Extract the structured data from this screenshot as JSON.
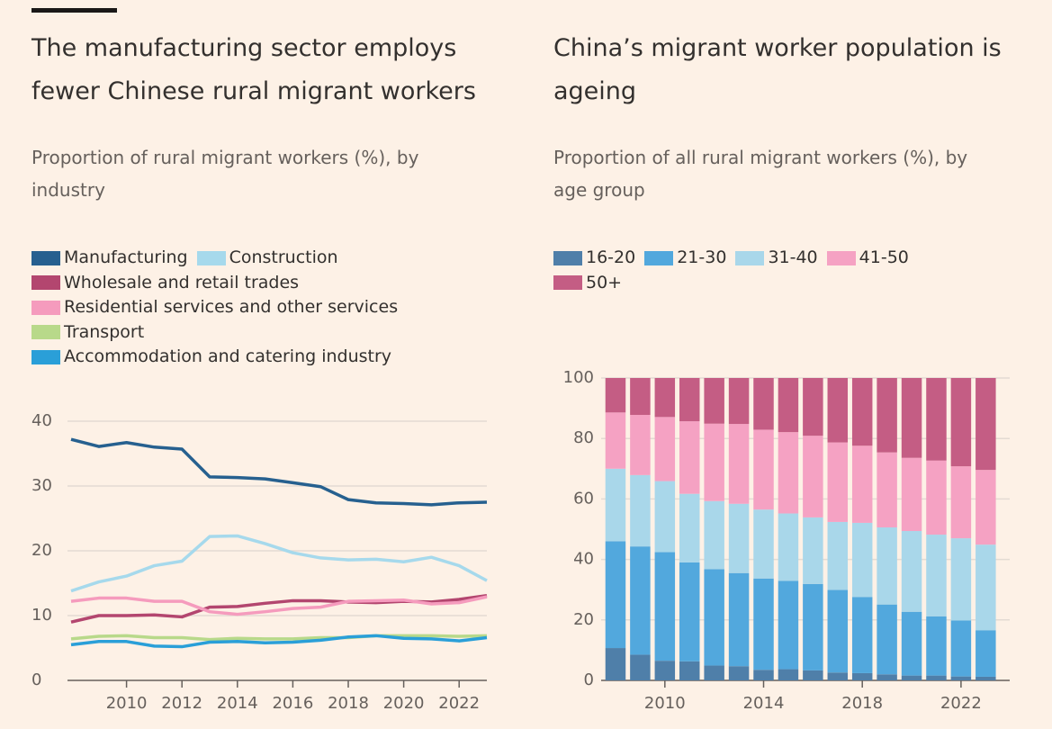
{
  "chart_data": [
    {
      "type": "line",
      "title": "The manufacturing sector employs fewer Chinese rural migrant workers",
      "subtitle": "Proportion of rural migrant workers (%), by industry",
      "x": [
        2008,
        2009,
        2010,
        2011,
        2012,
        2013,
        2014,
        2015,
        2016,
        2017,
        2018,
        2019,
        2020,
        2021,
        2022,
        2023
      ],
      "xlim": [
        2008,
        2023
      ],
      "xticks": [
        2010,
        2012,
        2014,
        2016,
        2018,
        2020,
        2022
      ],
      "ylim": [
        0,
        40
      ],
      "yticks": [
        0,
        10,
        20,
        30,
        40
      ],
      "grid": true,
      "series": [
        {
          "name": "Manufacturing",
          "color": "#26608f",
          "values": [
            37.2,
            36.1,
            36.7,
            36.0,
            35.7,
            31.4,
            31.3,
            31.1,
            30.5,
            29.9,
            27.9,
            27.4,
            27.3,
            27.1,
            27.4,
            27.5
          ]
        },
        {
          "name": "Construction",
          "color": "#a6d9ec",
          "values": [
            13.8,
            15.2,
            16.1,
            17.7,
            18.4,
            22.2,
            22.3,
            21.1,
            19.7,
            18.9,
            18.6,
            18.7,
            18.3,
            19.0,
            17.7,
            15.4
          ]
        },
        {
          "name": "Wholesale and retail trades",
          "color": "#b3466f",
          "values": [
            9.0,
            10.0,
            10.0,
            10.1,
            9.8,
            11.3,
            11.4,
            11.9,
            12.3,
            12.3,
            12.1,
            12.0,
            12.2,
            12.1,
            12.5,
            13.1
          ]
        },
        {
          "name": "Residential services and other services",
          "color": "#f59bbd",
          "values": [
            12.2,
            12.7,
            12.7,
            12.2,
            12.2,
            10.6,
            10.2,
            10.6,
            11.1,
            11.3,
            12.2,
            12.3,
            12.4,
            11.8,
            12.0,
            12.9
          ]
        },
        {
          "name": "Transport",
          "color": "#b8d98a",
          "values": [
            6.4,
            6.8,
            6.9,
            6.6,
            6.6,
            6.3,
            6.5,
            6.4,
            6.4,
            6.6,
            6.6,
            6.9,
            6.9,
            6.9,
            6.8,
            6.9
          ]
        },
        {
          "name": "Accommodation and catering industry",
          "color": "#2a9fd8",
          "values": [
            5.5,
            6.0,
            6.0,
            5.3,
            5.2,
            5.9,
            6.0,
            5.8,
            5.9,
            6.2,
            6.7,
            6.9,
            6.5,
            6.4,
            6.1,
            6.6
          ]
        }
      ]
    },
    {
      "type": "bar",
      "stacked": true,
      "title": "China’s migrant worker population is ageing",
      "subtitle": "Proportion of all rural migrant workers (%), by age group",
      "x": [
        2008,
        2009,
        2010,
        2011,
        2012,
        2013,
        2014,
        2015,
        2016,
        2017,
        2018,
        2019,
        2020,
        2021,
        2022,
        2023
      ],
      "xlim": [
        2007.6,
        2023.9
      ],
      "xticks": [
        2010,
        2014,
        2018,
        2022
      ],
      "ylim": [
        0,
        100
      ],
      "yticks": [
        0,
        20,
        40,
        60,
        80,
        100
      ],
      "grid": true,
      "series": [
        {
          "name": "16-20",
          "color": "#4f7fa9",
          "values": [
            10.7,
            8.5,
            6.5,
            6.3,
            4.9,
            4.7,
            3.5,
            3.7,
            3.3,
            2.6,
            2.4,
            2.0,
            1.6,
            1.6,
            1.3,
            1.2
          ]
        },
        {
          "name": "21-30",
          "color": "#52a8dd",
          "values": [
            35.3,
            35.8,
            35.9,
            32.7,
            31.9,
            30.8,
            30.2,
            29.2,
            28.6,
            27.3,
            25.2,
            23.1,
            21.1,
            19.6,
            18.5,
            15.4
          ]
        },
        {
          "name": "31-40",
          "color": "#a9d7ea",
          "values": [
            24.0,
            23.6,
            23.5,
            22.7,
            22.5,
            22.9,
            22.8,
            22.3,
            22.0,
            22.5,
            24.5,
            25.5,
            26.7,
            27.0,
            27.2,
            28.3
          ]
        },
        {
          "name": "41-50",
          "color": "#f5a2c3",
          "values": [
            18.6,
            19.9,
            21.2,
            24.0,
            25.6,
            26.4,
            26.4,
            26.9,
            27.0,
            26.3,
            25.5,
            24.8,
            24.2,
            24.5,
            23.8,
            24.7
          ]
        },
        {
          "name": "50+",
          "color": "#c45d84",
          "values": [
            11.4,
            12.2,
            12.9,
            14.3,
            15.1,
            15.2,
            17.1,
            17.9,
            19.1,
            21.3,
            22.4,
            24.6,
            26.4,
            27.3,
            29.2,
            30.4
          ]
        }
      ]
    }
  ]
}
